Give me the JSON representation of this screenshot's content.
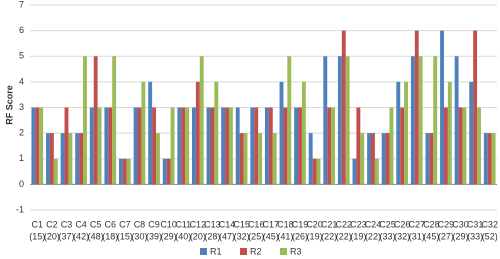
{
  "chart_data": {
    "type": "bar",
    "y_label": "RF Score",
    "categories": [
      [
        "C1",
        "(15)"
      ],
      [
        "C2",
        "(20)"
      ],
      [
        "C3",
        "(37)"
      ],
      [
        "C4",
        "(42)"
      ],
      [
        "C5",
        "(48)"
      ],
      [
        "C6",
        "(18)"
      ],
      [
        "C7",
        "(15)"
      ],
      [
        "C8",
        "(30)"
      ],
      [
        "C9",
        "(39)"
      ],
      [
        "C10",
        "(29)"
      ],
      [
        "C11",
        "(40)"
      ],
      [
        "C12",
        "(20)"
      ],
      [
        "C13",
        "(28)"
      ],
      [
        "C14",
        "(47)"
      ],
      [
        "C15",
        "(32)"
      ],
      [
        "C16",
        "(25)"
      ],
      [
        "C17",
        "(45)"
      ],
      [
        "C18",
        "(41)"
      ],
      [
        "C19",
        "(26)"
      ],
      [
        "C20",
        "(19)"
      ],
      [
        "C21",
        "(22)"
      ],
      [
        "C22",
        "(22)"
      ],
      [
        "C23",
        "(19)"
      ],
      [
        "C24",
        "(22)"
      ],
      [
        "C25",
        "(33)"
      ],
      [
        "C26",
        "(32)"
      ],
      [
        "C27",
        "(31)"
      ],
      [
        "C28",
        "(45)"
      ],
      [
        "C29",
        "(27)"
      ],
      [
        "C30",
        "(29)"
      ],
      [
        "C31",
        "(33)"
      ],
      [
        "C32",
        "(52)"
      ]
    ],
    "series": [
      {
        "name": "R1",
        "color": "#4f81bd",
        "values": [
          3,
          2,
          2,
          2,
          3,
          3,
          1,
          3,
          4,
          1,
          3,
          3,
          3,
          3,
          3,
          3,
          3,
          4,
          3,
          2,
          5,
          5,
          1,
          2,
          2,
          4,
          5,
          2,
          6,
          5,
          4,
          2
        ]
      },
      {
        "name": "R2",
        "color": "#c0504d",
        "values": [
          3,
          2,
          3,
          2,
          5,
          3,
          1,
          3,
          3,
          1,
          3,
          4,
          3,
          3,
          2,
          3,
          3,
          3,
          3,
          1,
          3,
          6,
          3,
          2,
          2,
          3,
          6,
          2,
          3,
          3,
          6,
          2
        ]
      },
      {
        "name": "R3",
        "color": "#9bbb59",
        "values": [
          3,
          1,
          2,
          5,
          3,
          5,
          1,
          4,
          2,
          3,
          3,
          5,
          4,
          3,
          2,
          2,
          2,
          5,
          4,
          1,
          3,
          5,
          2,
          1,
          3,
          4,
          5,
          5,
          4,
          3,
          3,
          2
        ]
      }
    ],
    "ylim": [
      -1,
      7
    ],
    "yticks": [
      -1,
      0,
      1,
      2,
      3,
      4,
      5,
      6,
      7
    ],
    "grid": true,
    "legend": "bottom"
  }
}
